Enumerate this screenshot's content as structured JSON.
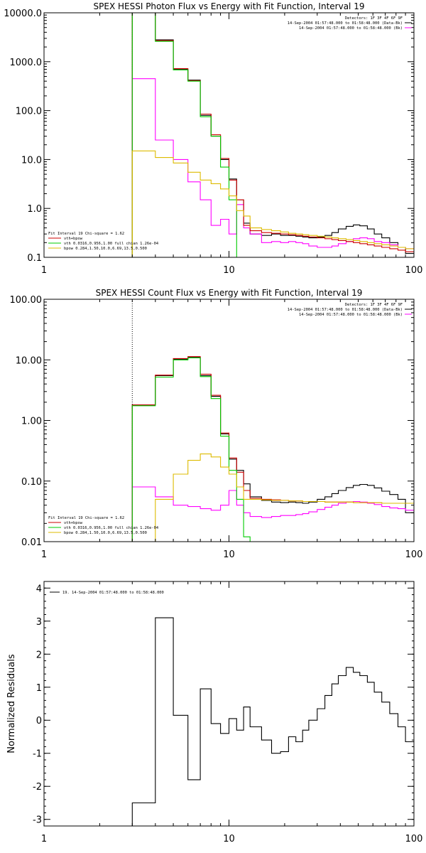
{
  "chart_data": [
    {
      "type": "line",
      "title": "SPEX HESSI Photon Flux vs Energy with Fit Function, Interval 19",
      "xscale": "log",
      "yscale": "log",
      "xlim": [
        1,
        100
      ],
      "ylim": [
        0.1,
        10000
      ],
      "xticks": [
        {
          "v": 1,
          "label": "1"
        },
        {
          "v": 10,
          "label": "10"
        },
        {
          "v": 100,
          "label": "100"
        }
      ],
      "yticks": [
        {
          "v": 0.1,
          "label": "0.1"
        },
        {
          "v": 1,
          "label": "1.0"
        },
        {
          "v": 10,
          "label": "10.0"
        },
        {
          "v": 100,
          "label": "100.0"
        },
        {
          "v": 1000,
          "label": "1000.0"
        },
        {
          "v": 10000,
          "label": "10000.0"
        }
      ],
      "vline": 3,
      "info": [
        "Detectors: 1F 3F 4F 6F 9F",
        "14-Sep-2004 01:57:48.000 to 01:58:48.000 (Data-Bk)",
        "14-Sep-2004 01:57:48.000 to 01:58:48.000 (Bk)"
      ],
      "info_colors": [
        "",
        "#000000",
        "#ff00ff"
      ],
      "legend_title": "Fit Interval 19   Chi-square = 1.62",
      "legend": [
        {
          "label": "vth+bpow",
          "color": "#cc0000"
        },
        {
          "label": "vth 0.0316,0.956,1.00  full chian 1.26e-04",
          "color": "#00cc00"
        },
        {
          "label": "bpow 0.284,1.50,10.0,6.69,13.5,0.500",
          "color": "#ddbb00"
        }
      ],
      "edges": [
        3,
        4,
        5,
        6,
        7,
        8,
        9,
        10,
        11,
        12,
        13,
        15,
        17,
        19,
        21,
        23,
        25,
        27,
        30,
        33,
        36,
        39,
        43,
        47,
        51,
        56,
        61,
        67,
        74,
        82,
        90,
        100
      ],
      "series": [
        {
          "name": "",
          "color": "#000000",
          "values": [
            10000,
            2800,
            700,
            420,
            80,
            30,
            10,
            4,
            1.5,
            0.5,
            0.3,
            0.28,
            0.3,
            0.28,
            0.28,
            0.27,
            0.26,
            0.25,
            0.26,
            0.28,
            0.32,
            0.38,
            0.43,
            0.46,
            0.44,
            0.38,
            0.3,
            0.25,
            0.2,
            0.16,
            0.12
          ]
        },
        {
          "name": "",
          "color": "#ff00ff",
          "values": [
            450,
            25,
            10,
            3.5,
            1.5,
            0.45,
            0.6,
            0.3,
            1.2,
            0.4,
            0.3,
            0.2,
            0.21,
            0.2,
            0.21,
            0.2,
            0.19,
            0.17,
            0.16,
            0.16,
            0.17,
            0.19,
            0.21,
            0.24,
            0.25,
            0.24,
            0.21,
            0.2,
            0.18,
            0.16,
            0.15
          ]
        },
        {
          "name": "",
          "color": "#cc0000",
          "values": [
            10000,
            2700,
            720,
            410,
            85,
            32,
            10.5,
            3.8,
            1.5,
            0.45,
            0.35,
            0.32,
            0.31,
            0.3,
            0.29,
            0.28,
            0.27,
            0.26,
            0.25,
            0.24,
            0.23,
            0.22,
            0.21,
            0.2,
            0.19,
            0.18,
            0.17,
            0.16,
            0.15,
            0.14,
            0.13
          ]
        },
        {
          "name": "",
          "color": "#00cc00",
          "values": [
            10000,
            2600,
            680,
            400,
            75,
            30,
            7,
            1.5,
            0.1
          ]
        },
        {
          "name": "",
          "color": "#ddbb00",
          "values": [
            15,
            11,
            8.5,
            5.5,
            3.8,
            3.2,
            2.5,
            1.8,
            0.9,
            0.7,
            0.4,
            0.37,
            0.35,
            0.33,
            0.31,
            0.3,
            0.29,
            0.28,
            0.27,
            0.26,
            0.25,
            0.24,
            0.23,
            0.22,
            0.21,
            0.2,
            0.19,
            0.18,
            0.17,
            0.16,
            0.15
          ]
        }
      ]
    },
    {
      "type": "line",
      "title": "SPEX HESSI Count Flux vs Energy with Fit Function, Interval 19",
      "xscale": "log",
      "yscale": "log",
      "xlim": [
        1,
        100
      ],
      "ylim": [
        0.01,
        100
      ],
      "xticks": [
        {
          "v": 1,
          "label": "1"
        },
        {
          "v": 10,
          "label": "10"
        },
        {
          "v": 100,
          "label": "100"
        }
      ],
      "yticks": [
        {
          "v": 0.01,
          "label": "0.01"
        },
        {
          "v": 0.1,
          "label": "0.10"
        },
        {
          "v": 1,
          "label": "1.00"
        },
        {
          "v": 10,
          "label": "10.00"
        },
        {
          "v": 100,
          "label": "100.00"
        }
      ],
      "vline": 3,
      "info": [
        "Detectors: 1F 3F 4F 6F 9F",
        "14-Sep-2004 01:57:48.000 to 01:58:48.000 (Data-Bk)",
        "14-Sep-2004 01:57:48.000 to 01:58:48.000 (Bk)"
      ],
      "info_colors": [
        "",
        "#000000",
        "#ff00ff"
      ],
      "legend_title": "Fit Interval 19   Chi-square = 1.62",
      "legend": [
        {
          "label": "vth+bpow",
          "color": "#cc0000"
        },
        {
          "label": "vth 0.0316,0.956,1.00  full chian 1.26e-04",
          "color": "#00cc00"
        },
        {
          "label": "bpow 0.284,1.50,10.0,6.69,13.5,0.500",
          "color": "#ddbb00"
        }
      ],
      "edges": [
        3,
        4,
        5,
        6,
        7,
        8,
        9,
        10,
        11,
        12,
        13,
        15,
        17,
        19,
        21,
        23,
        25,
        27,
        30,
        33,
        36,
        39,
        43,
        47,
        51,
        56,
        61,
        67,
        74,
        82,
        90,
        100
      ],
      "series": [
        {
          "name": "",
          "color": "#000000",
          "values": [
            1.8,
            5.5,
            10.2,
            11,
            5.5,
            2.5,
            0.6,
            0.23,
            0.15,
            0.09,
            0.055,
            0.048,
            0.045,
            0.044,
            0.045,
            0.044,
            0.043,
            0.045,
            0.05,
            0.055,
            0.062,
            0.07,
            0.078,
            0.085,
            0.088,
            0.085,
            0.077,
            0.068,
            0.06,
            0.05,
            0.03
          ]
        },
        {
          "name": "",
          "color": "#ff00ff",
          "values": [
            0.08,
            0.055,
            0.04,
            0.038,
            0.035,
            0.033,
            0.04,
            0.07,
            0.04,
            0.03,
            0.026,
            0.025,
            0.026,
            0.027,
            0.027,
            0.028,
            0.029,
            0.031,
            0.034,
            0.037,
            0.04,
            0.043,
            0.045,
            0.046,
            0.045,
            0.043,
            0.041,
            0.038,
            0.036,
            0.035,
            0.033
          ]
        },
        {
          "name": "",
          "color": "#cc0000",
          "values": [
            1.8,
            5.6,
            10.5,
            11.3,
            5.8,
            2.6,
            0.62,
            0.24,
            0.14,
            0.07,
            0.052,
            0.05,
            0.049,
            0.048,
            0.047,
            0.047,
            0.046,
            0.046,
            0.046,
            0.045,
            0.045,
            0.045,
            0.045,
            0.044,
            0.044,
            0.044,
            0.044,
            0.043,
            0.043,
            0.043,
            0.043
          ]
        },
        {
          "name": "",
          "color": "#00cc00",
          "values": [
            1.75,
            5.2,
            10,
            10.8,
            5.3,
            2.3,
            0.55,
            0.15,
            0.05,
            0.012,
            0.005
          ]
        },
        {
          "name": "",
          "color": "#ddbb00",
          "values": [
            0.008,
            0.05,
            0.13,
            0.22,
            0.28,
            0.25,
            0.17,
            0.13,
            0.08,
            0.05,
            0.05,
            0.049,
            0.048,
            0.048,
            0.047,
            0.047,
            0.046,
            0.046,
            0.046,
            0.045,
            0.045,
            0.045,
            0.045,
            0.044,
            0.044,
            0.044,
            0.044,
            0.043,
            0.043,
            0.043,
            0.043
          ]
        }
      ]
    },
    {
      "type": "line",
      "title": "",
      "xscale": "log",
      "yscale": "linear",
      "xlim": [
        1,
        100
      ],
      "ylim": [
        -3.2,
        4.2
      ],
      "ylabel": "Normalized Residuals",
      "xticks": [
        {
          "v": 1,
          "label": "1"
        },
        {
          "v": 10,
          "label": "10"
        },
        {
          "v": 100,
          "label": "100"
        }
      ],
      "yticks": [
        {
          "v": -3,
          "label": "-3"
        },
        {
          "v": -2,
          "label": "-2"
        },
        {
          "v": -1,
          "label": "-1"
        },
        {
          "v": 0,
          "label": "0"
        },
        {
          "v": 1,
          "label": "1"
        },
        {
          "v": 2,
          "label": "2"
        },
        {
          "v": 3,
          "label": "3"
        },
        {
          "v": 4,
          "label": "4"
        }
      ],
      "legend_title": "",
      "legend": [
        {
          "label": "19. 14-Sep-2004 01:57:48.000 to 01:58:48.000",
          "color": "#000000"
        }
      ],
      "edges": [
        3,
        4,
        5,
        6,
        7,
        8,
        9,
        10,
        11,
        12,
        13,
        15,
        17,
        19,
        21,
        23,
        25,
        27,
        30,
        33,
        36,
        39,
        43,
        47,
        51,
        56,
        61,
        67,
        74,
        82,
        90,
        100
      ],
      "series": [
        {
          "name": "",
          "color": "#000000",
          "values": [
            -2.5,
            3.1,
            0.15,
            -1.8,
            0.95,
            -0.1,
            -0.4,
            0.05,
            -0.3,
            0.4,
            -0.2,
            -0.6,
            -1.0,
            -0.95,
            -0.5,
            -0.65,
            -0.3,
            0,
            0.35,
            0.75,
            1.1,
            1.35,
            1.6,
            1.45,
            1.35,
            1.15,
            0.85,
            0.55,
            0.2,
            -0.2,
            -0.65
          ]
        }
      ]
    }
  ]
}
